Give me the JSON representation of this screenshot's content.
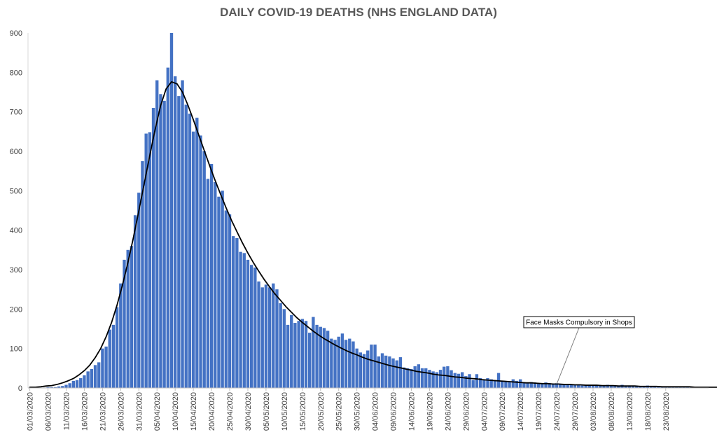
{
  "chart_data": {
    "type": "bar",
    "title": "DAILY COVID-19 DEATHS (NHS ENGLAND DATA)",
    "xlabel": "",
    "ylabel": "",
    "ylim": [
      0,
      900
    ],
    "yticks": [
      0,
      100,
      200,
      300,
      400,
      500,
      600,
      700,
      800,
      900
    ],
    "x_tick_labels": [
      "01/03/2020",
      "06/03/2020",
      "11/03/2020",
      "16/03/2020",
      "21/03/2020",
      "26/03/2020",
      "31/03/2020",
      "05/04/2020",
      "10/04/2020",
      "15/04/2020",
      "20/04/2020",
      "25/04/2020",
      "30/04/2020",
      "05/05/2020",
      "10/05/2020",
      "15/05/2020",
      "20/05/2020",
      "25/05/2020",
      "30/05/2020",
      "04/06/2020",
      "09/06/2020",
      "14/06/2020",
      "19/06/2020",
      "24/06/2020",
      "29/06/2020",
      "04/07/2020",
      "09/07/2020",
      "14/07/2020",
      "19/07/2020",
      "24/07/2020",
      "29/07/2020",
      "03/08/2020",
      "08/08/2020",
      "13/08/2020",
      "18/08/2020",
      "23/08/2020"
    ],
    "start_date": "01/03/2020",
    "bar_color": "#4472C4",
    "trend_color": "#000000",
    "grid": false,
    "legend": "none",
    "series": [
      {
        "type": "bar",
        "values": [
          1,
          0,
          1,
          1,
          1,
          2,
          2,
          2,
          4,
          5,
          8,
          12,
          18,
          20,
          25,
          32,
          42,
          48,
          58,
          65,
          100,
          105,
          148,
          160,
          205,
          265,
          325,
          350,
          360,
          438,
          495,
          575,
          645,
          648,
          710,
          780,
          745,
          728,
          812,
          900,
          790,
          740,
          780,
          718,
          695,
          650,
          685,
          640,
          600,
          530,
          568,
          522,
          485,
          500,
          450,
          440,
          385,
          380,
          345,
          342,
          325,
          312,
          305,
          270,
          255,
          262,
          255,
          265,
          250,
          215,
          200,
          160,
          185,
          165,
          170,
          175,
          170,
          140,
          180,
          160,
          155,
          152,
          145,
          125,
          122,
          130,
          138,
          122,
          125,
          118,
          100,
          90,
          86,
          95,
          110,
          110,
          80,
          88,
          82,
          80,
          75,
          70,
          78,
          52,
          50,
          48,
          55,
          60,
          50,
          50,
          46,
          42,
          40,
          46,
          54,
          55,
          45,
          38,
          36,
          40,
          30,
          35,
          20,
          35,
          25,
          22,
          25,
          22,
          20,
          38,
          18,
          15,
          15,
          22,
          18,
          22,
          15,
          14,
          15,
          14,
          12,
          12,
          14,
          12,
          10,
          12,
          10,
          9,
          8,
          8,
          7,
          8,
          6,
          7,
          8,
          6,
          7,
          6,
          6,
          8,
          5,
          5,
          6,
          8,
          5,
          5,
          5,
          5,
          5,
          4,
          6,
          4,
          3,
          4,
          3,
          3,
          3,
          3,
          3,
          3,
          3,
          3,
          3,
          2,
          2,
          2,
          2
        ]
      },
      {
        "type": "line",
        "values": [
          2,
          2,
          3,
          5,
          6,
          9,
          13,
          18,
          24,
          33,
          44,
          58,
          77,
          100,
          130,
          166,
          210,
          261,
          318,
          381,
          449,
          519,
          589,
          656,
          716,
          758,
          776,
          771,
          750,
          717,
          680,
          641,
          602,
          563,
          526,
          491,
          457,
          425,
          396,
          368,
          342,
          318,
          296,
          275,
          256,
          238,
          222,
          206,
          192,
          178,
          166,
          155,
          144,
          134,
          125,
          117,
          109,
          102,
          95,
          89,
          84,
          78,
          73,
          69,
          65,
          61,
          57,
          54,
          51,
          48,
          45,
          42,
          40,
          38,
          35,
          33,
          32,
          30,
          28,
          27,
          25,
          24,
          23,
          21,
          20,
          19,
          18,
          17,
          16,
          15,
          14,
          13,
          13,
          12,
          11,
          11,
          10,
          10,
          9,
          9,
          8,
          8,
          7,
          7,
          7,
          6,
          6,
          6,
          5,
          5,
          5,
          5,
          4,
          4,
          4,
          4,
          3,
          3,
          3,
          3,
          3,
          3,
          2,
          2,
          2,
          2,
          2,
          2
        ]
      }
    ],
    "annotations": [
      {
        "text": "Face Masks Compulsory in Shops",
        "date": "24/07/2020",
        "y": 10
      }
    ]
  }
}
